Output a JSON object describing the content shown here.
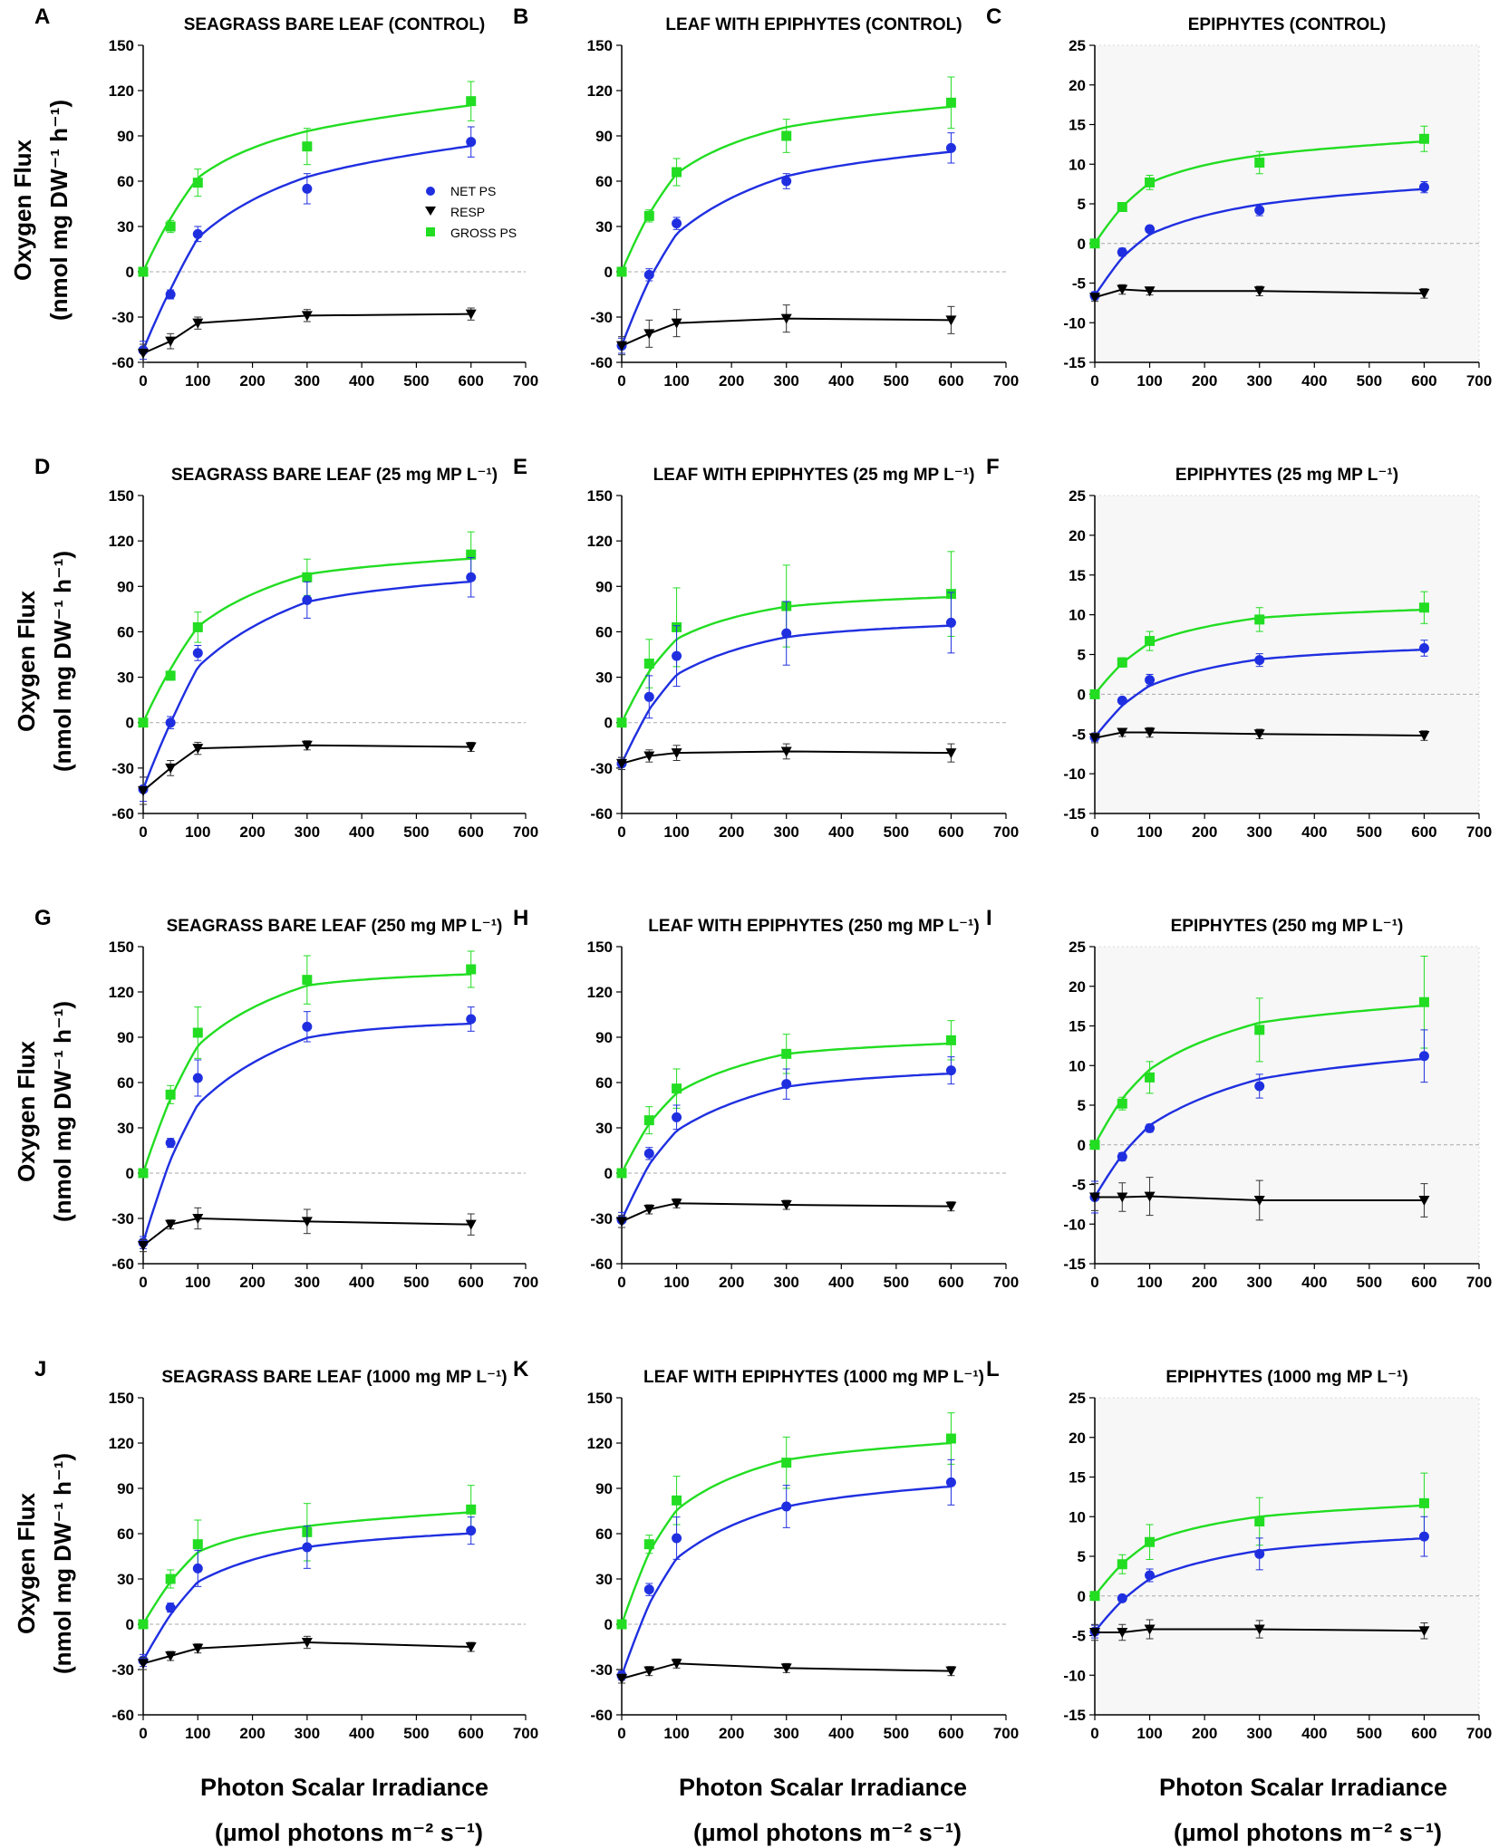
{
  "figure": {
    "y_axis_label_line1": "Oxygen Flux",
    "y_axis_label_line2": "(nmol mg DW⁻¹ h⁻¹)",
    "x_axis_label_line1": "Photon Scalar Irradiance",
    "x_axis_label_line2": "(µmol photons m⁻² s⁻¹)",
    "colors": {
      "net": "#1f2fe0",
      "resp": "#000000",
      "gross": "#22dd22"
    }
  },
  "legend": {
    "net": "NET PS",
    "resp": "RESP",
    "gross": "GROSS PS"
  },
  "chart_data": [
    {
      "type": "line",
      "panel": "A",
      "title": "SEAGRASS BARE LEAF (CONTROL)",
      "xlim": [
        0,
        700
      ],
      "ylim": [
        -60,
        150
      ],
      "x": [
        0,
        50,
        100,
        300,
        600
      ],
      "series": [
        {
          "name": "NET PS",
          "values": [
            -52,
            -15,
            25,
            55,
            86
          ],
          "err": [
            6,
            3,
            5,
            10,
            10
          ]
        },
        {
          "name": "RESP",
          "values": [
            -54,
            -46,
            -34,
            -29,
            -28
          ],
          "err": [
            6,
            5,
            4,
            4,
            4
          ]
        },
        {
          "name": "GROSS PS",
          "values": [
            0,
            30,
            59,
            83,
            113
          ],
          "err": [
            2,
            4,
            9,
            12,
            13
          ]
        }
      ]
    },
    {
      "type": "line",
      "panel": "B",
      "title": "LEAF WITH EPIPHYTES (CONTROL)",
      "xlim": [
        0,
        700
      ],
      "ylim": [
        -60,
        150
      ],
      "x": [
        0,
        50,
        100,
        300,
        600
      ],
      "series": [
        {
          "name": "NET PS",
          "values": [
            -49,
            -2,
            32,
            60,
            82
          ],
          "err": [
            5,
            4,
            4,
            5,
            10
          ]
        },
        {
          "name": "RESP",
          "values": [
            -49,
            -41,
            -34,
            -31,
            -32
          ],
          "err": [
            6,
            9,
            9,
            9,
            9
          ]
        },
        {
          "name": "GROSS PS",
          "values": [
            0,
            37,
            66,
            90,
            112
          ],
          "err": [
            2,
            4,
            9,
            11,
            17
          ]
        }
      ]
    },
    {
      "type": "line",
      "panel": "C",
      "title": "EPIPHYTES (CONTROL)",
      "xlim": [
        0,
        700
      ],
      "ylim": [
        -15,
        25
      ],
      "x": [
        0,
        50,
        100,
        300,
        600
      ],
      "series": [
        {
          "name": "NET PS",
          "values": [
            -6.6,
            -1.1,
            1.8,
            4.2,
            7.1
          ],
          "err": [
            0.5,
            0.5,
            0.4,
            0.7,
            0.7
          ]
        },
        {
          "name": "RESP",
          "values": [
            -6.8,
            -5.8,
            -6.0,
            -6.0,
            -6.3
          ],
          "err": [
            0.5,
            0.6,
            0.5,
            0.6,
            0.6
          ]
        },
        {
          "name": "GROSS PS",
          "values": [
            0,
            4.6,
            7.7,
            10.2,
            13.2
          ],
          "err": [
            0.3,
            0.5,
            0.9,
            1.4,
            1.6
          ]
        }
      ]
    },
    {
      "type": "line",
      "panel": "D",
      "title": "SEAGRASS BARE LEAF (25 mg MP L⁻¹)",
      "xlim": [
        0,
        700
      ],
      "ylim": [
        -60,
        150
      ],
      "x": [
        0,
        50,
        100,
        300,
        600
      ],
      "series": [
        {
          "name": "NET PS",
          "values": [
            -44,
            0,
            46,
            81,
            96
          ],
          "err": [
            8,
            4,
            5,
            12,
            13
          ]
        },
        {
          "name": "RESP",
          "values": [
            -45,
            -30,
            -17,
            -15,
            -16
          ],
          "err": [
            9,
            5,
            4,
            3,
            3
          ]
        },
        {
          "name": "GROSS PS",
          "values": [
            0,
            31,
            63,
            96,
            111
          ],
          "err": [
            2,
            3,
            10,
            12,
            15
          ]
        }
      ]
    },
    {
      "type": "line",
      "panel": "E",
      "title": "LEAF WITH EPIPHYTES (25 mg MP L⁻¹)",
      "xlim": [
        0,
        700
      ],
      "ylim": [
        -60,
        150
      ],
      "x": [
        0,
        50,
        100,
        300,
        600
      ],
      "series": [
        {
          "name": "NET PS",
          "values": [
            -27,
            17,
            44,
            59,
            66
          ],
          "err": [
            4,
            14,
            20,
            21,
            20
          ]
        },
        {
          "name": "RESP",
          "values": [
            -27,
            -22,
            -20,
            -19,
            -20
          ],
          "err": [
            4,
            4,
            5,
            5,
            6
          ]
        },
        {
          "name": "GROSS PS",
          "values": [
            0,
            39,
            63,
            77,
            85
          ],
          "err": [
            2,
            16,
            26,
            27,
            28
          ]
        }
      ]
    },
    {
      "type": "line",
      "panel": "F",
      "title": "EPIPHYTES (25 mg MP L⁻¹)",
      "xlim": [
        0,
        700
      ],
      "ylim": [
        -15,
        25
      ],
      "x": [
        0,
        50,
        100,
        300,
        600
      ],
      "series": [
        {
          "name": "NET PS",
          "values": [
            -5.4,
            -0.8,
            1.8,
            4.3,
            5.8
          ],
          "err": [
            0.5,
            0.4,
            0.7,
            0.8,
            1
          ]
        },
        {
          "name": "RESP",
          "values": [
            -5.5,
            -4.8,
            -4.8,
            -5.0,
            -5.2
          ],
          "err": [
            0.6,
            0.5,
            0.6,
            0.6,
            0.6
          ]
        },
        {
          "name": "GROSS PS",
          "values": [
            0,
            4,
            6.7,
            9.4,
            10.9
          ],
          "err": [
            0.3,
            0.6,
            1.2,
            1.5,
            2
          ]
        }
      ]
    },
    {
      "type": "line",
      "panel": "G",
      "title": "SEAGRASS BARE LEAF (250 mg MP L⁻¹)",
      "xlim": [
        0,
        700
      ],
      "ylim": [
        -60,
        150
      ],
      "x": [
        0,
        50,
        100,
        300,
        600
      ],
      "series": [
        {
          "name": "NET PS",
          "values": [
            -46,
            20,
            63,
            97,
            102
          ],
          "err": [
            4,
            3,
            12,
            10,
            8
          ]
        },
        {
          "name": "RESP",
          "values": [
            -48,
            -34,
            -30,
            -32,
            -34
          ],
          "err": [
            4,
            3,
            7,
            8,
            7
          ]
        },
        {
          "name": "GROSS PS",
          "values": [
            0,
            52,
            93,
            128,
            135
          ],
          "err": [
            2,
            6,
            17,
            16,
            12
          ]
        }
      ]
    },
    {
      "type": "line",
      "panel": "H",
      "title": "LEAF WITH EPIPHYTES (250 mg MP L⁻¹)",
      "xlim": [
        0,
        700
      ],
      "ylim": [
        -60,
        150
      ],
      "x": [
        0,
        50,
        100,
        300,
        600
      ],
      "series": [
        {
          "name": "NET PS",
          "values": [
            -31,
            13,
            37,
            59,
            68
          ],
          "err": [
            5,
            4,
            8,
            10,
            9
          ]
        },
        {
          "name": "RESP",
          "values": [
            -32,
            -24,
            -20,
            -21,
            -22
          ],
          "err": [
            4,
            3,
            3,
            3,
            3
          ]
        },
        {
          "name": "GROSS PS",
          "values": [
            0,
            35,
            56,
            79,
            88
          ],
          "err": [
            2,
            9,
            13,
            13,
            13
          ]
        }
      ]
    },
    {
      "type": "line",
      "panel": "I",
      "title": "EPIPHYTES (250 mg MP L⁻¹)",
      "xlim": [
        0,
        700
      ],
      "ylim": [
        -15,
        25
      ],
      "x": [
        0,
        50,
        100,
        300,
        600
      ],
      "series": [
        {
          "name": "NET PS",
          "values": [
            -6.6,
            -1.5,
            2.1,
            7.4,
            11.2
          ],
          "err": [
            2,
            0.5,
            0.5,
            1.5,
            3.3
          ]
        },
        {
          "name": "RESP",
          "values": [
            -6.6,
            -6.6,
            -6.5,
            -7.0,
            -7.0
          ],
          "err": [
            1.7,
            1.8,
            2.4,
            2.5,
            2.1
          ]
        },
        {
          "name": "GROSS PS",
          "values": [
            0,
            5.2,
            8.5,
            14.5,
            18
          ],
          "err": [
            0.3,
            0.8,
            2,
            4,
            5.8
          ]
        }
      ]
    },
    {
      "type": "line",
      "panel": "J",
      "title": "SEAGRASS BARE LEAF (1000 mg MP L⁻¹)",
      "xlim": [
        0,
        700
      ],
      "ylim": [
        -60,
        150
      ],
      "x": [
        0,
        50,
        100,
        300,
        600
      ],
      "series": [
        {
          "name": "NET PS",
          "values": [
            -24,
            11,
            37,
            51,
            62
          ],
          "err": [
            4,
            3,
            12,
            14,
            9
          ]
        },
        {
          "name": "RESP",
          "values": [
            -26,
            -21,
            -16,
            -12,
            -15
          ],
          "err": [
            4,
            3,
            3,
            4,
            3
          ]
        },
        {
          "name": "GROSS PS",
          "values": [
            0,
            30,
            53,
            61,
            76
          ],
          "err": [
            2,
            6,
            16,
            19,
            16
          ]
        }
      ]
    },
    {
      "type": "line",
      "panel": "K",
      "title": "LEAF WITH EPIPHYTES (1000 mg MP L⁻¹)",
      "xlim": [
        0,
        700
      ],
      "ylim": [
        -60,
        150
      ],
      "x": [
        0,
        50,
        100,
        300,
        600
      ],
      "series": [
        {
          "name": "NET PS",
          "values": [
            -34,
            23,
            57,
            78,
            94
          ],
          "err": [
            3,
            4,
            14,
            14,
            15
          ]
        },
        {
          "name": "RESP",
          "values": [
            -36,
            -31,
            -26,
            -29,
            -31
          ],
          "err": [
            3,
            3,
            3,
            3,
            3
          ]
        },
        {
          "name": "GROSS PS",
          "values": [
            0,
            53,
            82,
            107,
            123
          ],
          "err": [
            2,
            6,
            16,
            17,
            17
          ]
        }
      ]
    },
    {
      "type": "line",
      "panel": "L",
      "title": "EPIPHYTES (1000 mg MP L⁻¹)",
      "xlim": [
        0,
        700
      ],
      "ylim": [
        -15,
        25
      ],
      "x": [
        0,
        50,
        100,
        300,
        600
      ],
      "series": [
        {
          "name": "NET PS",
          "values": [
            -4.5,
            -0.3,
            2.6,
            5.3,
            7.5
          ],
          "err": [
            0.8,
            0.4,
            0.8,
            2,
            2.5
          ]
        },
        {
          "name": "RESP",
          "values": [
            -4.6,
            -4.6,
            -4.2,
            -4.2,
            -4.4
          ],
          "err": [
            1,
            1,
            1.2,
            1.1,
            1
          ]
        },
        {
          "name": "GROSS PS",
          "values": [
            0,
            4,
            6.8,
            9.4,
            11.7
          ],
          "err": [
            0.3,
            1.2,
            2.2,
            3,
            3.8
          ]
        }
      ]
    }
  ]
}
